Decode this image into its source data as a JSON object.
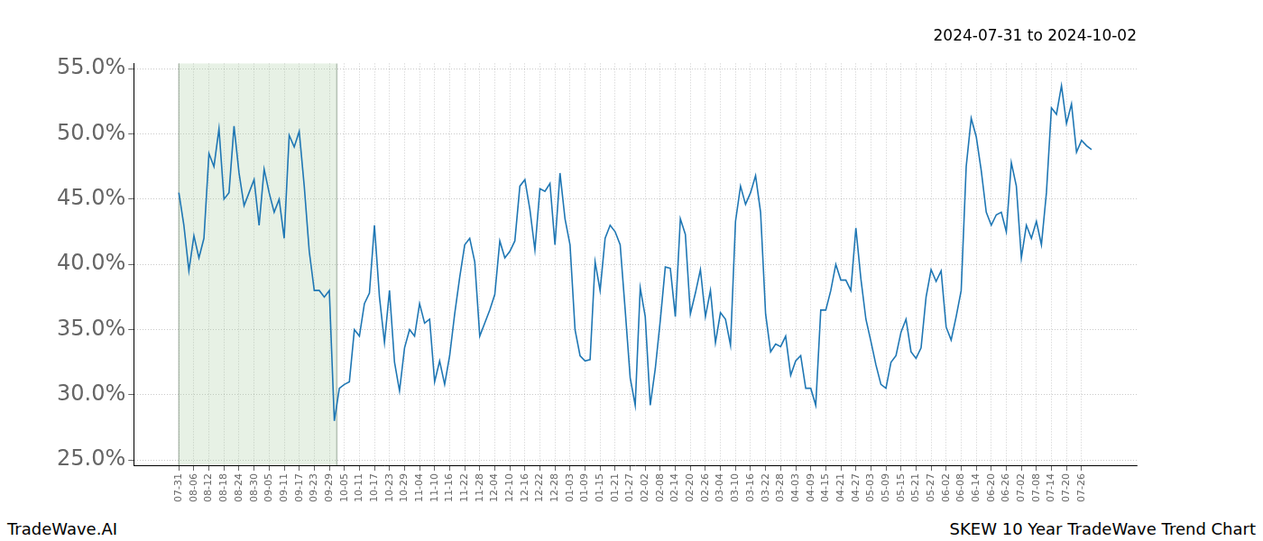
{
  "chart_data": {
    "type": "line",
    "title": "2024-07-31 to 2024-10-02",
    "annotations": [
      "TradeWave.AI",
      "SKEW 10 Year TradeWave Trend Chart"
    ],
    "color": "#1f77b4",
    "grid": true,
    "shaded_range": [
      "07-31",
      "10-02"
    ],
    "ylim": [
      24.6,
      55.4
    ],
    "yticks": [
      {
        "value": 25,
        "label": "25.0%"
      },
      {
        "value": 30,
        "label": "30.0%"
      },
      {
        "value": 35,
        "label": "35.0%"
      },
      {
        "value": 40,
        "label": "40.0%"
      },
      {
        "value": 45,
        "label": "45.0%"
      },
      {
        "value": 50,
        "label": "50.0%"
      },
      {
        "value": 55,
        "label": "55.0%"
      }
    ],
    "categories": [
      "07-31",
      null,
      null,
      "08-06",
      null,
      null,
      "08-12",
      null,
      null,
      "08-18",
      null,
      null,
      "08-24",
      null,
      null,
      "08-30",
      null,
      null,
      "09-05",
      null,
      null,
      "09-11",
      null,
      null,
      "09-17",
      null,
      null,
      "09-23",
      null,
      null,
      "09-29",
      null,
      null,
      "10-05",
      null,
      null,
      "10-11",
      null,
      null,
      "10-17",
      null,
      null,
      "10-23",
      null,
      null,
      "10-29",
      null,
      null,
      "11-04",
      null,
      null,
      "11-10",
      null,
      null,
      "11-16",
      null,
      null,
      "11-22",
      null,
      null,
      "11-28",
      null,
      null,
      "12-04",
      null,
      null,
      "12-10",
      null,
      null,
      "12-16",
      null,
      null,
      "12-22",
      null,
      null,
      "12-28",
      null,
      null,
      "01-03",
      null,
      null,
      "01-09",
      null,
      null,
      "01-15",
      null,
      null,
      "01-21",
      null,
      null,
      "01-27",
      null,
      null,
      "02-02",
      null,
      null,
      "02-08",
      null,
      null,
      "02-14",
      null,
      null,
      "02-20",
      null,
      null,
      "02-26",
      null,
      null,
      "03-04",
      null,
      null,
      "03-10",
      null,
      null,
      "03-16",
      null,
      null,
      "03-22",
      null,
      null,
      "03-28",
      null,
      null,
      "04-03",
      null,
      null,
      "04-09",
      null,
      null,
      "04-15",
      null,
      null,
      "04-21",
      null,
      null,
      "04-27",
      null,
      null,
      "05-03",
      null,
      null,
      "05-09",
      null,
      null,
      "05-15",
      null,
      null,
      "05-21",
      null,
      null,
      "05-27",
      null,
      null,
      "06-02",
      null,
      null,
      "06-08",
      null,
      null,
      "06-14",
      null,
      null,
      "06-20",
      null,
      null,
      "06-26",
      null,
      null,
      "07-02",
      null,
      null,
      "07-08",
      null,
      null,
      "07-14",
      null,
      null,
      "07-20",
      null,
      null,
      "07-26",
      null,
      null
    ],
    "values": [
      45.5,
      43,
      39.5,
      42.2,
      40.5,
      42,
      48.5,
      47.5,
      50.4,
      45,
      45.5,
      50.6,
      47,
      44.5,
      45.5,
      46.5,
      43,
      47.3,
      45.5,
      44,
      45,
      42,
      49.9,
      49,
      50.2,
      46,
      41,
      38,
      38,
      37.5,
      38,
      28,
      30.5,
      30.8,
      31,
      35,
      34.5,
      37,
      37.8,
      43,
      37.5,
      34,
      38,
      32.5,
      30.3,
      33.6,
      35,
      34.5,
      37,
      35.5,
      35.8,
      31,
      32.6,
      30.8,
      33,
      36.2,
      39,
      41.5,
      42,
      40.2,
      34.5,
      35.5,
      36.5,
      37.7,
      41.8,
      40.5,
      41,
      41.8,
      46,
      46.5,
      44.2,
      41.1,
      45.8,
      45.6,
      46.2,
      41.5,
      47,
      43.5,
      41.5,
      35,
      33,
      32.6,
      32.7,
      40.2,
      38,
      42,
      43,
      42.5,
      41.5,
      36.5,
      31.3,
      29.2,
      38.2,
      36,
      29.2,
      32,
      35.7,
      39.8,
      39.7,
      36,
      43.5,
      42.3,
      36.2,
      37.8,
      39.6,
      36,
      38,
      34,
      36.3,
      35.8,
      33.8,
      43.3,
      46,
      44.6,
      45.5,
      46.8,
      44,
      36.2,
      33.3,
      33.9,
      33.7,
      34.5,
      31.5,
      32.6,
      33,
      30.5,
      30.5,
      29.2,
      36.5,
      36.5,
      38,
      40,
      38.8,
      38.8,
      38,
      42.8,
      38.9,
      35.8,
      34.1,
      32.3,
      30.8,
      30.5,
      32.5,
      33,
      34.8,
      35.8,
      33.3,
      32.8,
      33.6,
      37.5,
      39.6,
      38.7,
      39.5,
      35.2,
      34.2,
      36,
      38,
      47.5,
      51.2,
      49.8,
      47.2,
      44,
      43,
      43.8,
      44,
      42.5,
      47.8,
      46,
      40.5,
      43,
      42,
      43.3,
      41.5,
      45.5,
      52,
      51.5,
      53.7,
      50.8,
      52.3,
      48.6,
      49.5,
      49.1,
      48.8
    ]
  }
}
